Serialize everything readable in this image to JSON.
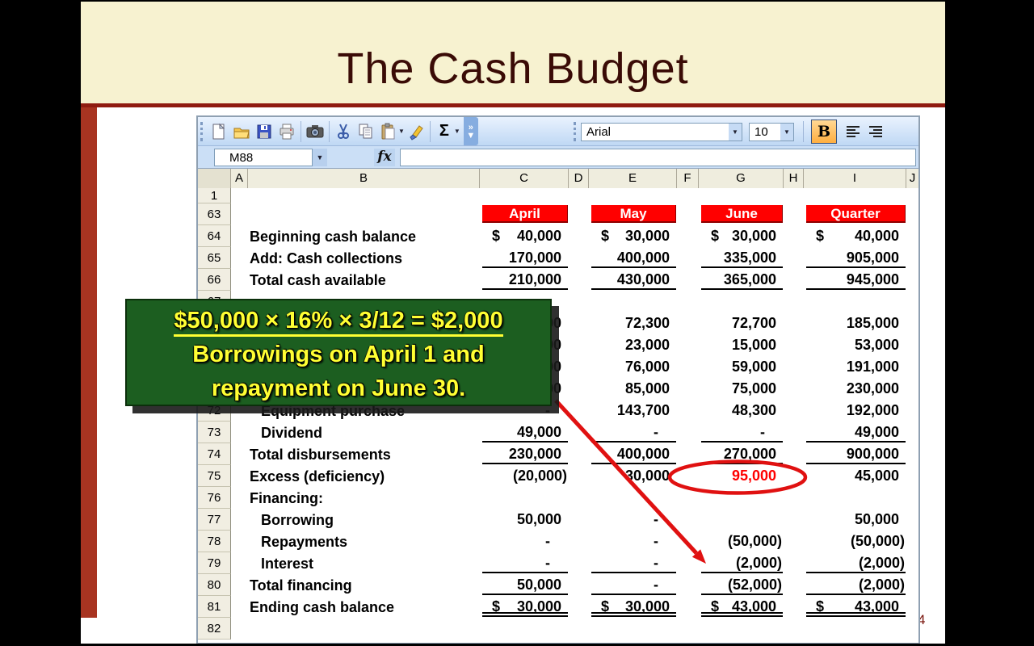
{
  "slide": {
    "title": "The Cash Budget",
    "page_number": "4",
    "band_color": "#F7F2D0",
    "accent_bar_color": "#A83421",
    "title_color": "#3A0B06"
  },
  "excel": {
    "name_box": "M88",
    "fx_label": "fx",
    "toolbar": {
      "font_name": "Arial",
      "font_size": "10",
      "bold_label": "B",
      "icons": [
        "new-document",
        "open",
        "save",
        "print",
        "camera",
        "cut",
        "copy",
        "paste",
        "format-painter",
        "autosum",
        "toolbar-options"
      ],
      "align_icons": [
        "align-left",
        "align-right"
      ]
    },
    "column_headers": [
      "",
      "A",
      "B",
      "C",
      "D",
      "E",
      "F",
      "G",
      "H",
      "I",
      "J"
    ],
    "table": {
      "month_headers": [
        "April",
        "May",
        "June",
        "Quarter"
      ],
      "header_color": "#FF0000",
      "rows": [
        {
          "num": "1",
          "label": "",
          "vals": [
            "",
            "",
            "",
            ""
          ],
          "short": true
        },
        {
          "num": "63",
          "months": true
        },
        {
          "num": "64",
          "label": "Beginning cash balance",
          "vals": [
            "$ 40,000",
            "$ 30,000",
            "$ 30,000",
            "$ 40,000"
          ]
        },
        {
          "num": "65",
          "label": "Add: Cash collections",
          "vals": [
            "170,000",
            "400,000",
            "335,000",
            "905,000"
          ],
          "ul": "s"
        },
        {
          "num": "66",
          "label": "Total cash available",
          "vals": [
            "210,000",
            "430,000",
            "365,000",
            "945,000"
          ],
          "ul": "s"
        },
        {
          "num": "67",
          "label": "",
          "vals": [
            "",
            "",
            "",
            ""
          ]
        },
        {
          "num": "68",
          "label": "",
          "vals": [
            "40,000",
            "72,300",
            "72,700",
            "185,000"
          ]
        },
        {
          "num": "69",
          "label": "",
          "vals": [
            "15,000",
            "23,000",
            "15,000",
            "53,000"
          ]
        },
        {
          "num": "70",
          "label": "",
          "vals": [
            "56,000",
            "76,000",
            "59,000",
            "191,000"
          ]
        },
        {
          "num": "71",
          "label": "",
          "vals": [
            "70,000",
            "85,000",
            "75,000",
            "230,000"
          ]
        },
        {
          "num": "72",
          "label": "Equipment purchase",
          "indent": true,
          "vals": [
            "-",
            "143,700",
            "48,300",
            "192,000"
          ]
        },
        {
          "num": "73",
          "label": "Dividend",
          "indent": true,
          "vals": [
            "49,000",
            "-",
            "-",
            "49,000"
          ],
          "ul": "s"
        },
        {
          "num": "74",
          "label": "Total disbursements",
          "vals": [
            "230,000",
            "400,000",
            "270,000",
            "900,000"
          ],
          "ul": "s"
        },
        {
          "num": "75",
          "label": "Excess (deficiency)",
          "vals": [
            "(20,000)",
            "30,000",
            "95,000",
            "45,000"
          ],
          "red_col": 2
        },
        {
          "num": "76",
          "label": "Financing:",
          "vals": [
            "",
            "",
            "",
            ""
          ]
        },
        {
          "num": "77",
          "label": "Borrowing",
          "indent": true,
          "vals": [
            "50,000",
            "-",
            "",
            "50,000"
          ]
        },
        {
          "num": "78",
          "label": "Repayments",
          "indent": true,
          "vals": [
            "-",
            "-",
            "(50,000)",
            "(50,000)"
          ]
        },
        {
          "num": "79",
          "label": "Interest",
          "indent": true,
          "vals": [
            "-",
            "-",
            "(2,000)",
            "(2,000)"
          ],
          "ul": "s"
        },
        {
          "num": "80",
          "label": "Total financing",
          "vals": [
            "50,000",
            "-",
            "(52,000)",
            "(2,000)"
          ],
          "ul": "s"
        },
        {
          "num": "81",
          "label": "Ending cash balance",
          "vals": [
            "$ 30,000",
            "$ 30,000",
            "$ 43,000",
            "$ 43,000"
          ],
          "ul": "d"
        },
        {
          "num": "82",
          "label": "",
          "vals": [
            "",
            "",
            "",
            ""
          ]
        }
      ]
    }
  },
  "callout": {
    "line1": "$50,000 × 16% × 3/12 = $2,000",
    "line2": "Borrowings on April 1 and",
    "line3": "repayment on June 30.",
    "bg": "#1C5E20",
    "text_color": "#FFFF33"
  },
  "annotations": {
    "arrow_color": "#E01111",
    "circled_value": "95,000"
  }
}
